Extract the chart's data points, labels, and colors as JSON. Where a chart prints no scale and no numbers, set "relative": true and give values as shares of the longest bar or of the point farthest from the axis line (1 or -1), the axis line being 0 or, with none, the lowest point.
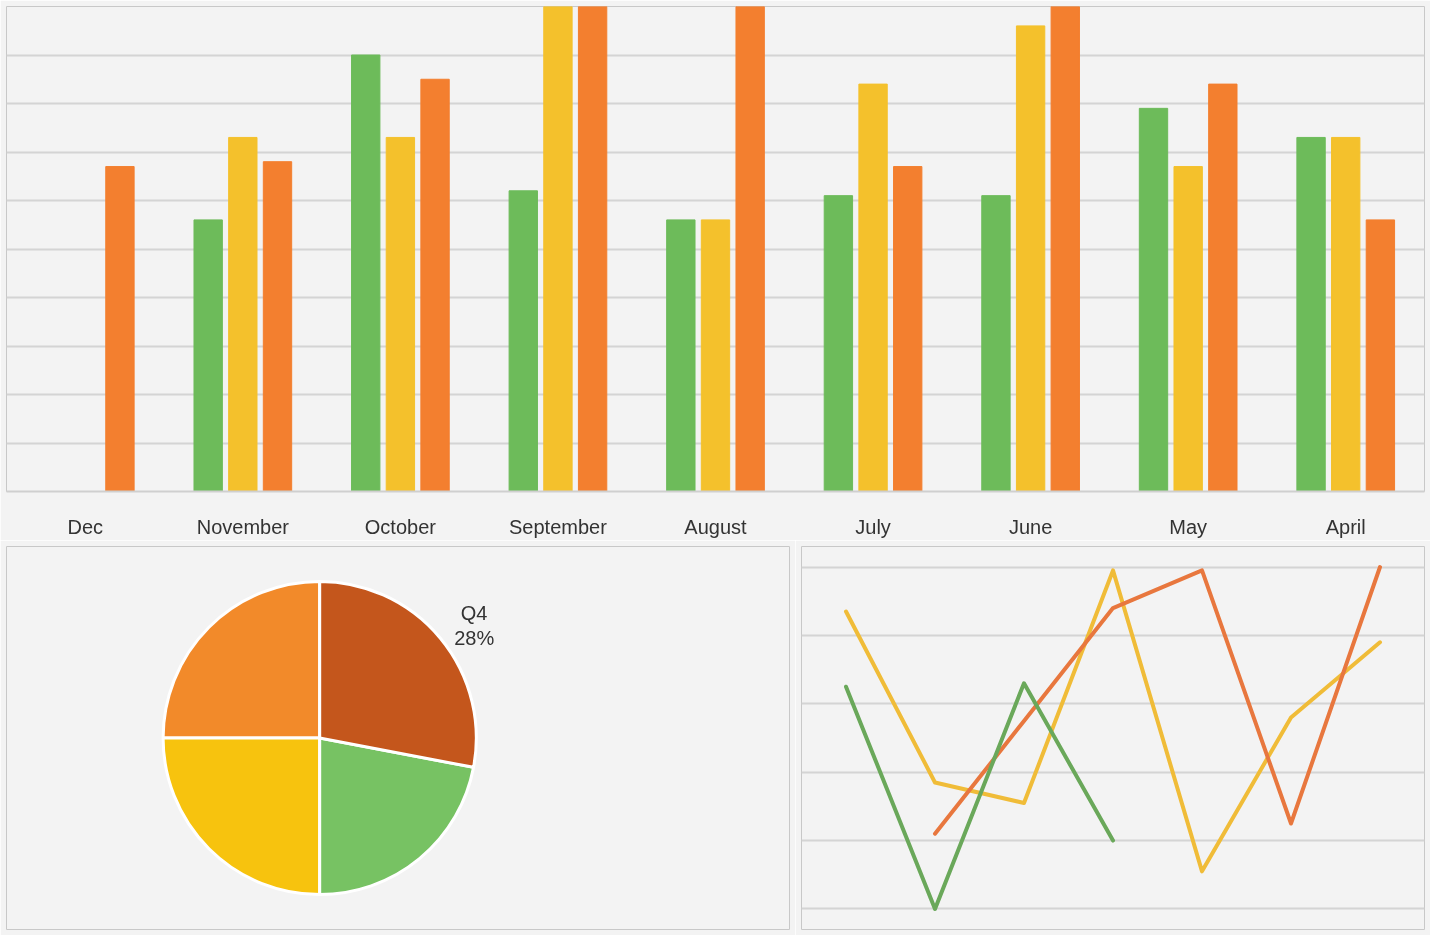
{
  "chart_data": [
    {
      "type": "bar",
      "relative": true,
      "grid": "y",
      "categories": [
        "Dec",
        "November",
        "October",
        "September",
        "August",
        "July",
        "June",
        "May",
        "April"
      ],
      "series": [
        {
          "color": "#6dbb5a",
          "values": [
            null,
            0.56,
            0.9,
            0.62,
            0.56,
            0.61,
            0.61,
            0.79,
            0.73
          ]
        },
        {
          "color": "#f4c12c",
          "values": [
            null,
            0.73,
            0.73,
            1,
            0.56,
            0.84,
            0.96,
            0.67,
            0.73
          ]
        },
        {
          "color": "#f37f2f",
          "values": [
            0.67,
            0.68,
            0.85,
            1,
            1,
            0.67,
            1,
            0.84,
            0.56
          ]
        }
      ]
    },
    {
      "type": "pie",
      "categories": [
        null,
        null,
        null,
        "Q4"
      ],
      "values": [
        25,
        25,
        22,
        28
      ],
      "colors": [
        "#f28a2a",
        "#f7c30e",
        "#77c263",
        "#c4561c"
      ],
      "value_labels": [
        null,
        null,
        null,
        "28%"
      ]
    },
    {
      "type": "line",
      "relative": true,
      "grid": "y",
      "categories": [
        null,
        null,
        null,
        null,
        null,
        null,
        null
      ],
      "series": [
        {
          "color": "#f0bc38",
          "values": [
            0.87,
            0.37,
            0.31,
            0.99,
            0.11,
            0.56,
            0.78
          ]
        },
        {
          "color": "#e8773e",
          "values": [
            null,
            0.22,
            0.55,
            0.88,
            0.99,
            0.25,
            1
          ]
        },
        {
          "color": "#6aa85a",
          "values": [
            0.65,
            0,
            0.66,
            0.2,
            null,
            null,
            null
          ]
        }
      ]
    }
  ]
}
